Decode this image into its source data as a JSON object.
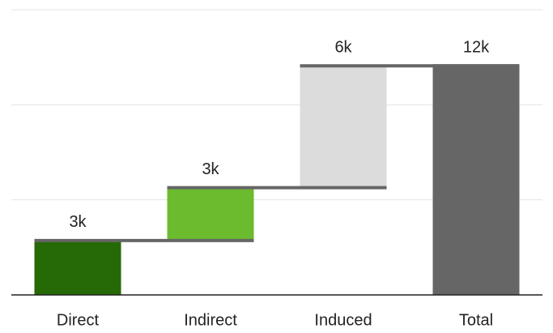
{
  "chart_data": {
    "type": "waterfall",
    "categories": [
      "Direct",
      "Indirect",
      "Induced",
      "Total"
    ],
    "values": [
      2860,
      2780,
      6410,
      12050
    ],
    "value_labels": [
      "3k",
      "3k",
      "6k",
      "12k"
    ],
    "is_total": [
      false,
      false,
      false,
      true
    ],
    "colors": [
      "#266a07",
      "#6cbb2f",
      "#dcdcdc",
      "#666666"
    ],
    "ylim": [
      0,
      15000
    ],
    "yticks": [
      0,
      5000,
      10000,
      15000
    ],
    "grid": true
  }
}
